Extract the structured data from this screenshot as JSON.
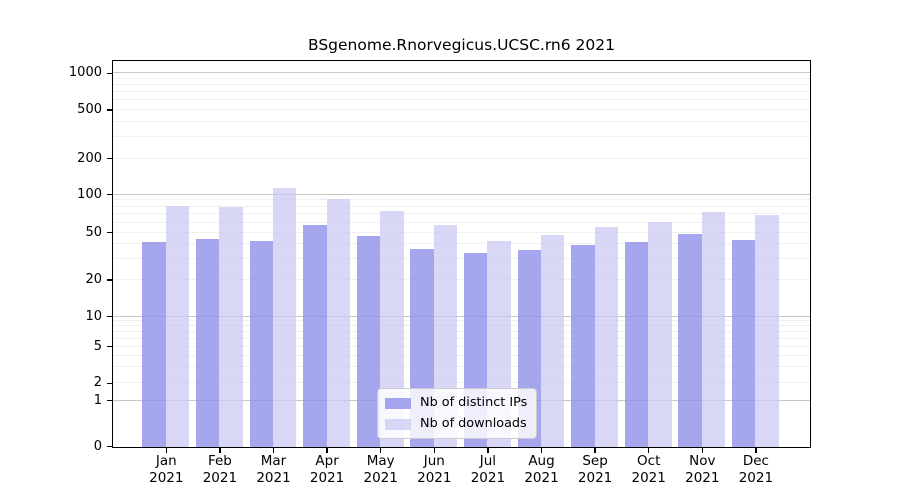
{
  "chart_data": {
    "type": "bar",
    "title": "BSgenome.Rnorvegicus.UCSC.rn6 2021",
    "categories": [
      "Jan 2021",
      "Feb 2021",
      "Mar 2021",
      "Apr 2021",
      "May 2021",
      "Jun 2021",
      "Jul 2021",
      "Aug 2021",
      "Sep 2021",
      "Oct 2021",
      "Nov 2021",
      "Dec 2021"
    ],
    "x_tick_month": [
      "Jan",
      "Feb",
      "Mar",
      "Apr",
      "May",
      "Jun",
      "Jul",
      "Aug",
      "Sep",
      "Oct",
      "Nov",
      "Dec"
    ],
    "x_tick_year": "2021",
    "series": [
      {
        "name": "Nb of distinct IPs",
        "color_hex": "#a6a6ee",
        "color_rgba": "rgba(146,146,236,0.82)",
        "values": [
          42,
          45,
          43,
          58,
          47,
          37,
          34,
          36,
          40,
          42,
          49,
          44
        ]
      },
      {
        "name": "Nb of downloads",
        "color_hex": "#d8d8f6",
        "color_rgba": "rgba(201,201,243,0.73)",
        "values": [
          82,
          80,
          114,
          94,
          75,
          58,
          43,
          48,
          56,
          61,
          74,
          70
        ]
      }
    ],
    "yticks": [
      0,
      1,
      2,
      5,
      10,
      20,
      50,
      100,
      200,
      500,
      1000
    ],
    "ylim": [
      0,
      1240
    ],
    "yscale": "log-like, compressed near zero",
    "grid": "horizontal, log minor + decade major",
    "legend_position": "inside lower-center",
    "colors": {
      "grid_major": "#c7c7c7",
      "grid_minor": "#f0f0f0",
      "axis": "#000000",
      "legend_border": "#cccccc"
    }
  }
}
